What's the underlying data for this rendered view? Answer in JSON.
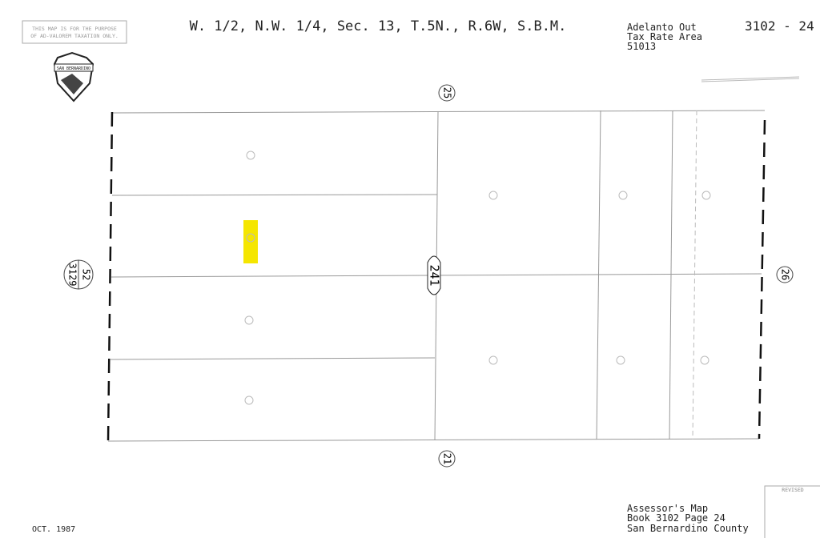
{
  "header": {
    "disclaimer": [
      "THIS MAP IS FOR THE PURPOSE",
      "OF AD-VALOREM TAXATION ONLY."
    ],
    "title": "W. 1/2, N.W. 1/4, Sec. 13, T.5N., R.6W, S.B.M.",
    "tax_area": [
      "Adelanto Out",
      "Tax Rate Area",
      "51013"
    ],
    "map_number": "3102 - 24",
    "seal": "SAN BERNARDINO"
  },
  "map": {
    "top_ref": "25",
    "center_ref": "241",
    "left_ref": [
      "3129",
      "52"
    ],
    "right_ref": "26",
    "bottom_ref": "21"
  },
  "footer": {
    "date": "OCT. 1987",
    "revised": "REVISED",
    "caption": [
      "Assessor's Map",
      "Book 3102 Page 24",
      "San Bernardino County"
    ]
  }
}
